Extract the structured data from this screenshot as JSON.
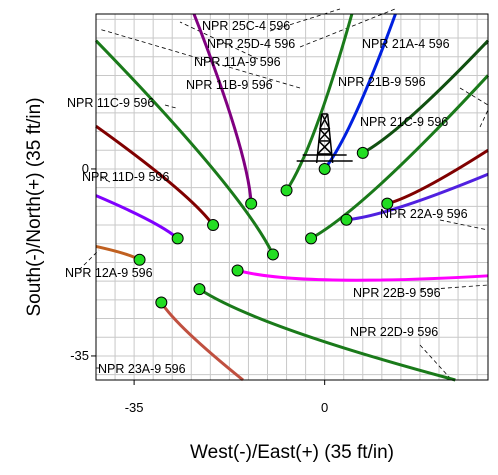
{
  "chart_data": {
    "type": "line",
    "title": "",
    "xlabel": "West(-)/East(+) (35 ft/in)",
    "ylabel": "South(-)/North(+) (35 ft/in)",
    "xlim": [
      -42,
      30
    ],
    "ylim": [
      -39.5,
      29
    ],
    "grid": true,
    "x_ticks": [
      -35,
      0
    ],
    "y_ticks": [
      0,
      -35
    ],
    "surface_location": [
      0,
      0
    ],
    "wells": [
      {
        "name": "NPR 25C-4 596",
        "color": "#1a7a1a",
        "start": [
          -7,
          -4
        ],
        "end": [
          5,
          29
        ]
      },
      {
        "name": "NPR 25D-4 596",
        "color": "#0020e0",
        "start": [
          0,
          0
        ],
        "end": [
          13,
          29
        ]
      },
      {
        "name": "NPR 11A-9 596",
        "color": "#800080",
        "start": [
          -13.5,
          -6.5
        ],
        "end": [
          -24,
          29
        ]
      },
      {
        "name": "NPR 11B-9 596",
        "color": "#1a7a1a",
        "start": [
          -9.5,
          -16
        ],
        "end": [
          -42,
          24
        ]
      },
      {
        "name": "NPR 21A-4 596",
        "color": "#105010",
        "start": [
          7,
          3
        ],
        "end": [
          30,
          24
        ]
      },
      {
        "name": "NPR 21B-9 596",
        "color": "#1a7a1a",
        "start": [
          -2.5,
          -13
        ],
        "end": [
          30,
          17.5
        ]
      },
      {
        "name": "NPR 21C-9 596",
        "color": "#800000",
        "start": [
          11.5,
          -6.5
        ],
        "end": [
          30,
          3.5
        ]
      },
      {
        "name": "NPR 11C-9 596",
        "color": "#800000",
        "start": [
          -20.5,
          -10.5
        ],
        "end": [
          -42,
          8
        ]
      },
      {
        "name": "NPR 11D-9 596",
        "color": "#8000ff",
        "start": [
          -27,
          -13
        ],
        "end": [
          -42,
          -5
        ]
      },
      {
        "name": "NPR 22A-9 596",
        "color": "#5020e0",
        "start": [
          4,
          -9.5
        ],
        "end": [
          30,
          -1
        ]
      },
      {
        "name": "NPR 12A-9 596",
        "color": "#c06020",
        "start": [
          -34,
          -17
        ],
        "end": [
          -42,
          -14.5
        ]
      },
      {
        "name": "NPR 22B-9 596",
        "color": "#ff00ff",
        "start": [
          -16,
          -19
        ],
        "end": [
          30,
          -20
        ]
      },
      {
        "name": "NPR 22D-9 596",
        "color": "#1a7a1a",
        "start": [
          -23,
          -22.5
        ],
        "end": [
          24,
          -39.5
        ]
      },
      {
        "name": "NPR 23A-9 596",
        "color": "#c05040",
        "start": [
          -30,
          -25
        ],
        "end": [
          -15,
          -39.5
        ]
      }
    ]
  }
}
